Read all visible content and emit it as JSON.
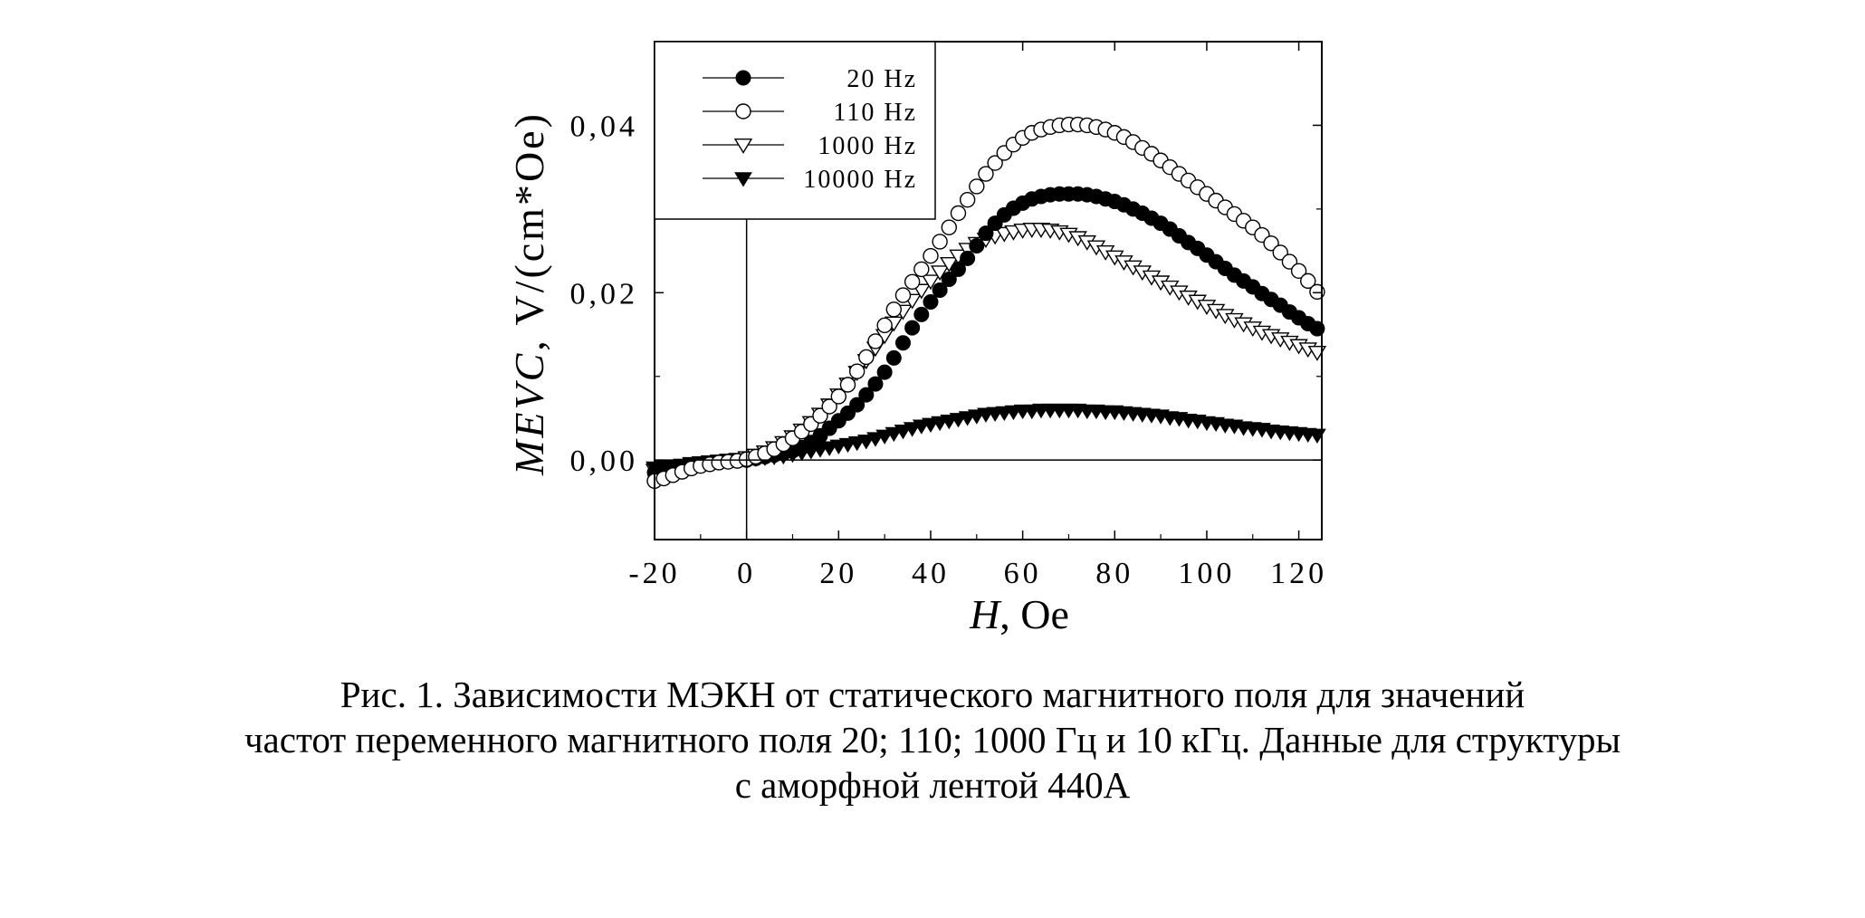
{
  "chart_data": {
    "type": "scatter",
    "xlabel": "H",
    "xlabel_unit": ", Oe",
    "ylabel": "MEVC",
    "ylabel_unit": ", V/(cm*Oe)",
    "xlim": [
      -20,
      125
    ],
    "ylim": [
      -0.0095,
      0.05
    ],
    "x_ticks": [
      -20,
      0,
      20,
      40,
      60,
      80,
      100,
      120
    ],
    "x_tick_labels": [
      "-20",
      "0",
      "20",
      "40",
      "60",
      "80",
      "100",
      "120"
    ],
    "y_ticks": [
      0.0,
      0.02,
      0.04
    ],
    "y_tick_labels": [
      "0,00",
      "0,02",
      "0,04"
    ],
    "zero_lines": true,
    "legend_position": "top-left",
    "series": [
      {
        "name": "20 Hz",
        "marker": "filled-circle",
        "x": [
          -20,
          -18,
          -16,
          -14,
          -12,
          -10,
          -8,
          -6,
          -4,
          -2,
          0,
          2,
          4,
          6,
          8,
          10,
          12,
          14,
          16,
          18,
          20,
          22,
          24,
          26,
          28,
          30,
          32,
          34,
          36,
          38,
          40,
          42,
          44,
          46,
          48,
          50,
          52,
          54,
          56,
          58,
          60,
          62,
          64,
          66,
          68,
          70,
          72,
          74,
          76,
          78,
          80,
          82,
          84,
          86,
          88,
          90,
          92,
          94,
          96,
          98,
          100,
          102,
          104,
          106,
          108,
          110,
          112,
          114,
          116,
          118,
          120,
          122,
          124
        ],
        "y": [
          -0.0015,
          -0.0013,
          -0.0011,
          -0.0009,
          -0.0007,
          -0.0005,
          -0.0004,
          -0.0003,
          -0.0002,
          -0.0001,
          0.0,
          0.0002,
          0.0004,
          0.0006,
          0.0008,
          0.0011,
          0.0015,
          0.0021,
          0.0029,
          0.0038,
          0.0047,
          0.0056,
          0.0066,
          0.0078,
          0.0091,
          0.0105,
          0.0122,
          0.014,
          0.0158,
          0.0174,
          0.0189,
          0.0203,
          0.0216,
          0.0228,
          0.0241,
          0.0256,
          0.0271,
          0.0283,
          0.0293,
          0.0301,
          0.0307,
          0.0312,
          0.0315,
          0.0317,
          0.0318,
          0.0318,
          0.0318,
          0.0317,
          0.0315,
          0.0312,
          0.0309,
          0.0305,
          0.03,
          0.0295,
          0.0289,
          0.0283,
          0.0276,
          0.0268,
          0.026,
          0.0253,
          0.0245,
          0.0237,
          0.0229,
          0.0221,
          0.0214,
          0.0207,
          0.0199,
          0.0192,
          0.0185,
          0.0177,
          0.017,
          0.0163,
          0.0157
        ]
      },
      {
        "name": "110 Hz",
        "marker": "open-circle",
        "x": [
          -20,
          -18,
          -16,
          -14,
          -12,
          -10,
          -8,
          -6,
          -4,
          -2,
          0,
          2,
          4,
          6,
          8,
          10,
          12,
          14,
          16,
          18,
          20,
          22,
          24,
          26,
          28,
          30,
          32,
          34,
          36,
          38,
          40,
          42,
          44,
          46,
          48,
          50,
          52,
          54,
          56,
          58,
          60,
          62,
          64,
          66,
          68,
          70,
          72,
          74,
          76,
          78,
          80,
          82,
          84,
          86,
          88,
          90,
          92,
          94,
          96,
          98,
          100,
          102,
          104,
          106,
          108,
          110,
          112,
          114,
          116,
          118,
          120,
          122,
          124
        ],
        "y": [
          -0.0025,
          -0.0022,
          -0.0018,
          -0.0014,
          -0.001,
          -0.0007,
          -0.0005,
          -0.0003,
          -0.0002,
          -0.0001,
          0.0001,
          0.0004,
          0.0008,
          0.0013,
          0.0019,
          0.0026,
          0.0034,
          0.0043,
          0.0053,
          0.0064,
          0.0076,
          0.009,
          0.0106,
          0.0123,
          0.0142,
          0.0161,
          0.018,
          0.0197,
          0.0213,
          0.0228,
          0.0244,
          0.0261,
          0.0278,
          0.0295,
          0.0311,
          0.0327,
          0.0342,
          0.0355,
          0.0367,
          0.0377,
          0.0385,
          0.0391,
          0.0395,
          0.0398,
          0.04,
          0.0401,
          0.0401,
          0.04,
          0.0398,
          0.0395,
          0.0391,
          0.0386,
          0.038,
          0.0373,
          0.0366,
          0.0358,
          0.035,
          0.0342,
          0.0334,
          0.0326,
          0.0318,
          0.031,
          0.0302,
          0.0294,
          0.0286,
          0.0278,
          0.0269,
          0.0259,
          0.0248,
          0.0237,
          0.0226,
          0.0214,
          0.0201
        ]
      },
      {
        "name": "1000 Hz",
        "marker": "open-triangle-down",
        "x": [
          -20,
          -18,
          -16,
          -14,
          -12,
          -10,
          -8,
          -6,
          -4,
          -2,
          0,
          2,
          4,
          6,
          8,
          10,
          12,
          14,
          16,
          18,
          20,
          22,
          24,
          26,
          28,
          30,
          32,
          34,
          36,
          38,
          40,
          42,
          44,
          46,
          48,
          50,
          52,
          54,
          56,
          58,
          60,
          62,
          64,
          66,
          68,
          70,
          72,
          74,
          76,
          78,
          80,
          82,
          84,
          86,
          88,
          90,
          92,
          94,
          96,
          98,
          100,
          102,
          104,
          106,
          108,
          110,
          112,
          114,
          116,
          118,
          120,
          122,
          124
        ],
        "y": [
          -0.0012,
          -0.001,
          -0.0008,
          -0.0006,
          -0.0004,
          -0.0003,
          -0.0002,
          -0.0001,
          0.0,
          0.0001,
          0.0003,
          0.0006,
          0.001,
          0.0015,
          0.0021,
          0.0028,
          0.0036,
          0.0045,
          0.0055,
          0.0066,
          0.0078,
          0.0091,
          0.0105,
          0.0119,
          0.0134,
          0.0149,
          0.0164,
          0.0178,
          0.0191,
          0.0203,
          0.0214,
          0.0225,
          0.0235,
          0.0244,
          0.0252,
          0.0259,
          0.0264,
          0.0268,
          0.0271,
          0.0273,
          0.0275,
          0.0276,
          0.0276,
          0.0275,
          0.0273,
          0.027,
          0.0266,
          0.0261,
          0.0255,
          0.0249,
          0.0243,
          0.0237,
          0.0231,
          0.0225,
          0.0219,
          0.0213,
          0.0207,
          0.0201,
          0.0195,
          0.019,
          0.0184,
          0.0179,
          0.0173,
          0.0168,
          0.0163,
          0.0158,
          0.0153,
          0.0149,
          0.0145,
          0.0141,
          0.0137,
          0.0133,
          0.0129
        ]
      },
      {
        "name": "10000 Hz",
        "marker": "filled-triangle-down",
        "x": [
          -20,
          -18,
          -16,
          -14,
          -12,
          -10,
          -8,
          -6,
          -4,
          -2,
          0,
          2,
          4,
          6,
          8,
          10,
          12,
          14,
          16,
          18,
          20,
          22,
          24,
          26,
          28,
          30,
          32,
          34,
          36,
          38,
          40,
          42,
          44,
          46,
          48,
          50,
          52,
          54,
          56,
          58,
          60,
          62,
          64,
          66,
          68,
          70,
          72,
          74,
          76,
          78,
          80,
          82,
          84,
          86,
          88,
          90,
          92,
          94,
          96,
          98,
          100,
          102,
          104,
          106,
          108,
          110,
          112,
          114,
          116,
          118,
          120,
          122,
          124
        ],
        "y": [
          -0.0009,
          -0.0008,
          -0.0007,
          -0.0006,
          -0.0005,
          -0.0004,
          -0.0003,
          -0.0002,
          -0.0001,
          0.0,
          0.0001,
          0.0002,
          0.0003,
          0.0004,
          0.0005,
          0.0007,
          0.0009,
          0.0011,
          0.0013,
          0.0015,
          0.0017,
          0.0019,
          0.0021,
          0.0023,
          0.0026,
          0.0029,
          0.0032,
          0.0035,
          0.0038,
          0.0041,
          0.0043,
          0.0045,
          0.0047,
          0.0049,
          0.0051,
          0.0053,
          0.0055,
          0.0056,
          0.0057,
          0.0058,
          0.0059,
          0.0059,
          0.006,
          0.006,
          0.006,
          0.006,
          0.006,
          0.0059,
          0.0059,
          0.0058,
          0.0058,
          0.0057,
          0.0056,
          0.0055,
          0.0054,
          0.0053,
          0.0051,
          0.005,
          0.0048,
          0.0047,
          0.0045,
          0.0044,
          0.0042,
          0.0041,
          0.0039,
          0.0038,
          0.0037,
          0.0035,
          0.0034,
          0.0033,
          0.0032,
          0.0031,
          0.003
        ]
      }
    ]
  },
  "caption": {
    "line1": "Рис. 1. Зависимости МЭКН от статического магнитного поля для значений",
    "line2": "частот переменного магнитного поля 20; 110; 1000 Гц и 10 кГц. Данные для структуры",
    "line3": "с аморфной лентой 440А"
  },
  "colors": {
    "ink": "#000000",
    "background": "#ffffff"
  }
}
